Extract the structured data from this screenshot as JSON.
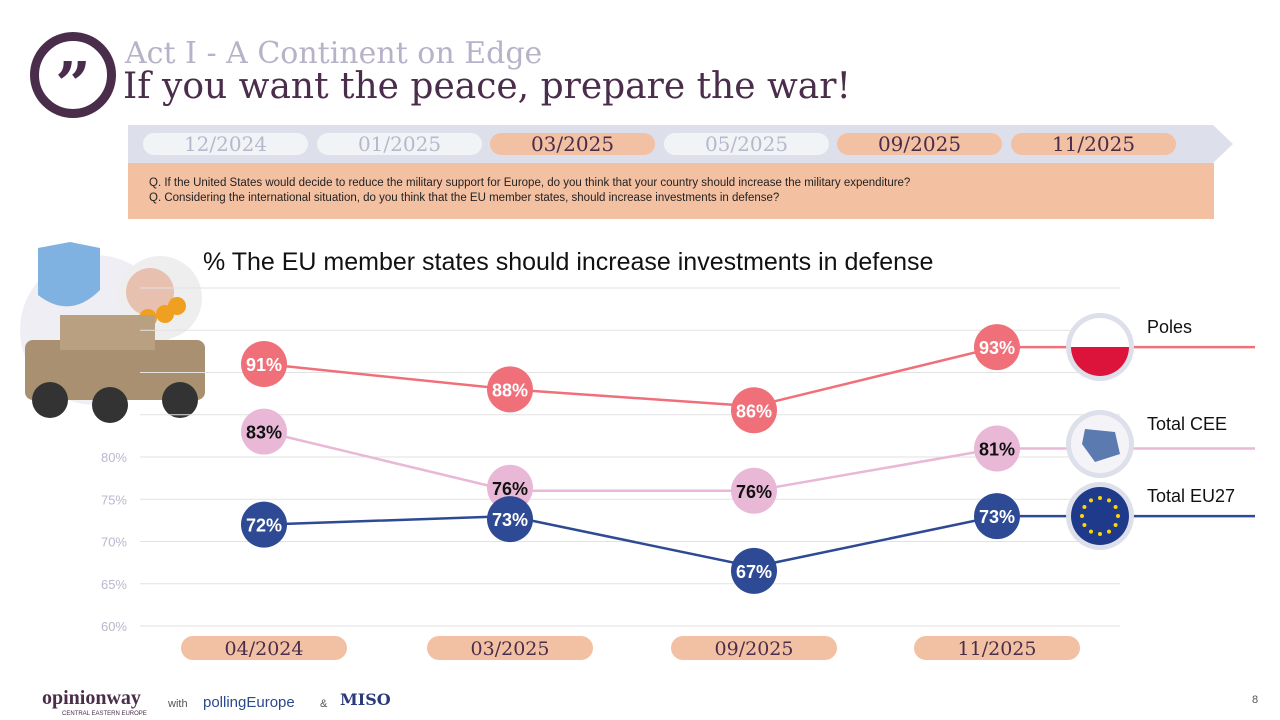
{
  "header": {
    "act": "Act I - A Continent on Edge",
    "title": "If you want the peace, prepare the war!",
    "quote_mark": "”"
  },
  "timeline": [
    {
      "label": "12/2024",
      "active": false
    },
    {
      "label": "01/2025",
      "active": false
    },
    {
      "label": "03/2025",
      "active": true
    },
    {
      "label": "05/2025",
      "active": false
    },
    {
      "label": "09/2025",
      "active": true
    },
    {
      "label": "11/2025",
      "active": true
    }
  ],
  "questions": [
    "Q. If the United States would decide to reduce the military support for Europe, do you think that your country should increase the military expenditure?",
    "Q. Considering the international situation, do you think that the EU member states, should increase investments in defense?"
  ],
  "chart_data": {
    "type": "line",
    "title": "% The EU member states should increase investments in defense",
    "categories": [
      "04/2024",
      "03/2025",
      "09/2025",
      "11/2025"
    ],
    "yticks": [
      "60%",
      "65%",
      "70%",
      "75%",
      "80%"
    ],
    "ylim": [
      60,
      100
    ],
    "series": [
      {
        "name": "Poles",
        "values": [
          91,
          88,
          86,
          93
        ],
        "color": "#f0707a",
        "text": "#ffffff"
      },
      {
        "name": "Total CEE",
        "values": [
          83,
          76,
          76,
          81
        ],
        "color": "#e8b8d6",
        "text": "#111111"
      },
      {
        "name": "Total EU27",
        "values": [
          72,
          73,
          67,
          73
        ],
        "color": "#2e4a94",
        "text": "#ffffff"
      }
    ]
  },
  "footer": {
    "brand": "opinionway",
    "brand_sub": "CENTRAL EASTERN EUROPE",
    "with": "with",
    "partner": "pollingEurope",
    "amp": "&",
    "partner2": "MISO",
    "page": "8"
  }
}
